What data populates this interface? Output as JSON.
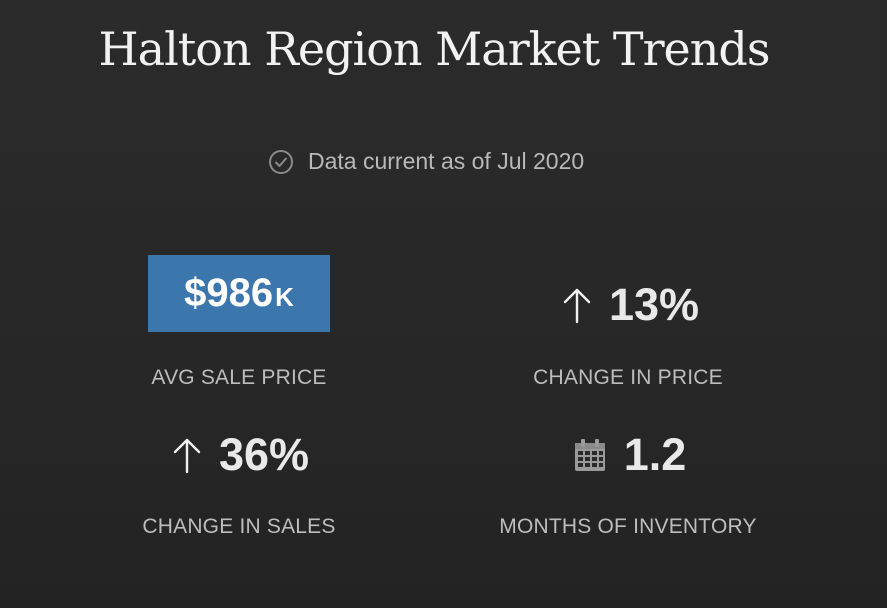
{
  "header": {
    "title": "Halton Region Market Trends"
  },
  "data_status": {
    "text": "Data current as of Jul 2020",
    "icon": "check-circle-icon"
  },
  "metrics": {
    "avg_sale_price": {
      "value": "$986",
      "unit": "K",
      "label": "AVG SALE PRICE",
      "badge_color": "#3b76ad"
    },
    "change_in_price": {
      "value": "13%",
      "direction": "up",
      "icon": "arrow-up-icon",
      "label": "CHANGE IN PRICE"
    },
    "change_in_sales": {
      "value": "36%",
      "direction": "up",
      "icon": "arrow-up-icon",
      "label": "CHANGE IN SALES"
    },
    "months_of_inventory": {
      "value": "1.2",
      "icon": "calendar-icon",
      "label": "MONTHS OF INVENTORY"
    }
  }
}
